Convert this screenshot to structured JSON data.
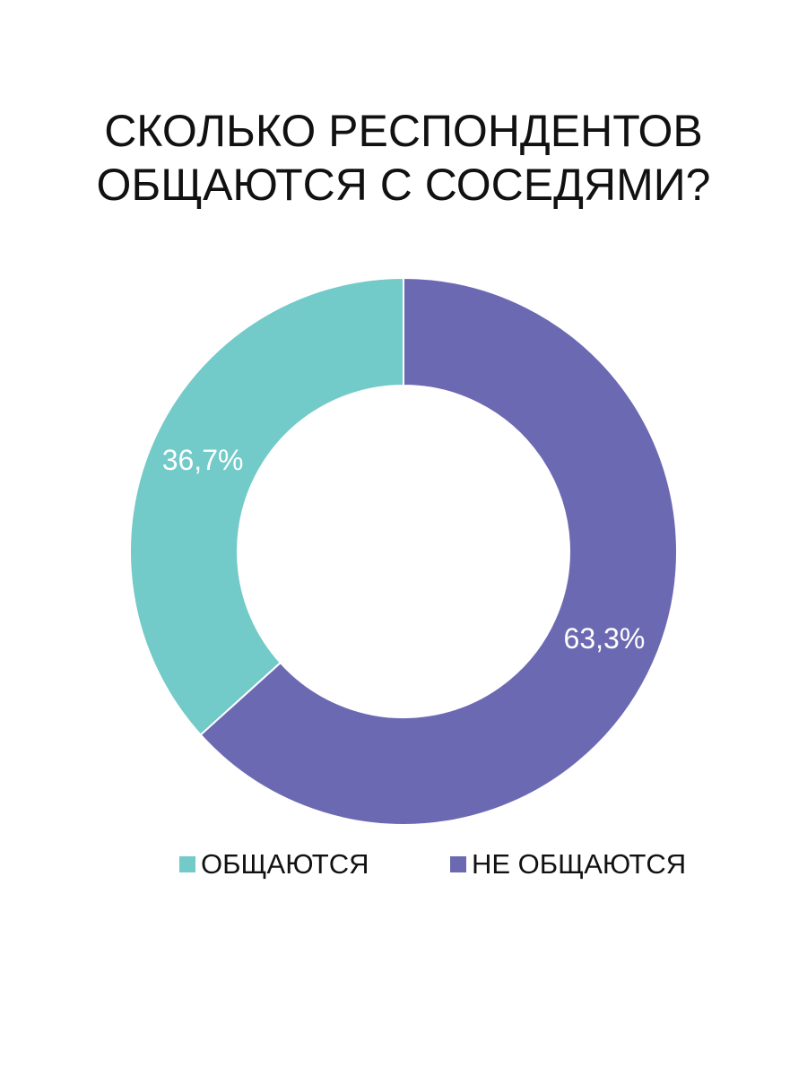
{
  "chart_data": {
    "type": "donut",
    "title": [
      "СКОЛЬКО РЕСПОНДЕНТОВ",
      "ОБЩАЮТСЯ С СОСЕДЯМИ?"
    ],
    "categories": [
      "ОБЩАЮТСЯ",
      "НЕ ОБЩАЮТСЯ"
    ],
    "values": [
      36.7,
      63.3
    ],
    "value_labels": [
      "36,7%",
      "63,3%"
    ],
    "colors": [
      "#72cac9",
      "#6c69b3"
    ],
    "legend": "bottom"
  }
}
